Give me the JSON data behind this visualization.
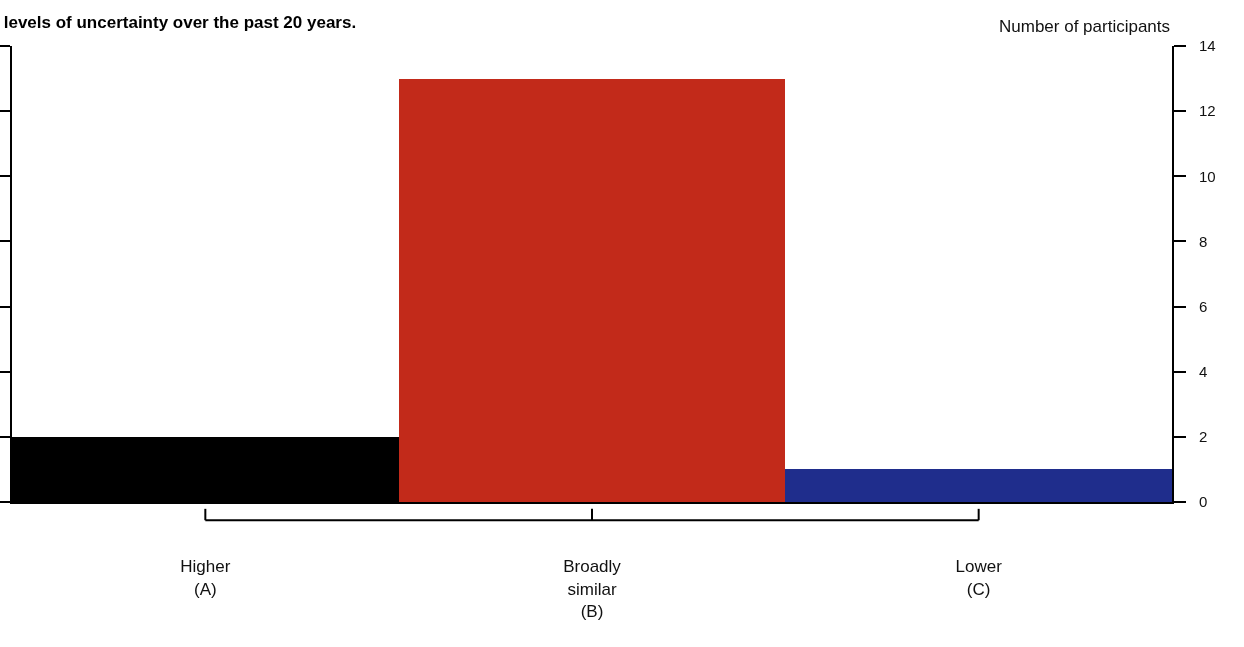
{
  "chart_data": {
    "type": "bar",
    "title": "levels of uncertainty over the past 20 years.",
    "ylabel": "Number of participants",
    "categories": [
      "Higher\n(A)",
      "Broadly\nsimilar\n(B)",
      "Lower\n(C)"
    ],
    "values": [
      2,
      13,
      1
    ],
    "colors": [
      "#000000",
      "#c22a1a",
      "#1f2d8c"
    ],
    "ylim": [
      0,
      14
    ],
    "yticks": [
      0,
      2,
      4,
      6,
      8,
      10,
      12,
      14
    ]
  }
}
